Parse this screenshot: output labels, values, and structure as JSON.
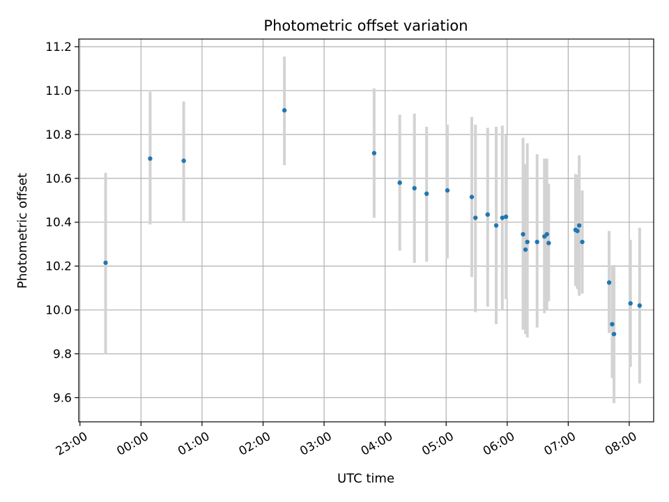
{
  "chart_data": {
    "type": "scatter",
    "title": "Photometric offset variation",
    "xlabel": "UTC time",
    "ylabel": "Photometric offset",
    "x_unit": "hours since 23:00",
    "xlim": [
      -0.02,
      9.4
    ],
    "ylim": [
      9.49,
      11.235
    ],
    "grid": true,
    "point_color": "#1f77b4",
    "errorbar_color": "#d3d3d3",
    "x_ticks": [
      {
        "value": 0,
        "label": "23:00"
      },
      {
        "value": 1,
        "label": "00:00"
      },
      {
        "value": 2,
        "label": "01:00"
      },
      {
        "value": 3,
        "label": "02:00"
      },
      {
        "value": 4,
        "label": "03:00"
      },
      {
        "value": 5,
        "label": "04:00"
      },
      {
        "value": 6,
        "label": "05:00"
      },
      {
        "value": 7,
        "label": "06:00"
      },
      {
        "value": 8,
        "label": "07:00"
      },
      {
        "value": 9,
        "label": "08:00"
      }
    ],
    "y_ticks": [
      {
        "value": 9.6,
        "label": "9.6"
      },
      {
        "value": 9.8,
        "label": "9.8"
      },
      {
        "value": 10.0,
        "label": "10.0"
      },
      {
        "value": 10.2,
        "label": "10.2"
      },
      {
        "value": 10.4,
        "label": "10.4"
      },
      {
        "value": 10.6,
        "label": "10.6"
      },
      {
        "value": 10.8,
        "label": "10.8"
      },
      {
        "value": 11.0,
        "label": "11.0"
      },
      {
        "value": 11.2,
        "label": "11.2"
      }
    ],
    "points": [
      {
        "x": 0.42,
        "y": 10.215,
        "ylo": 9.8,
        "yhi": 10.625
      },
      {
        "x": 1.15,
        "y": 10.69,
        "ylo": 10.39,
        "yhi": 10.995
      },
      {
        "x": 1.7,
        "y": 10.68,
        "ylo": 10.405,
        "yhi": 10.95
      },
      {
        "x": 3.35,
        "y": 10.91,
        "ylo": 10.66,
        "yhi": 11.155
      },
      {
        "x": 4.82,
        "y": 10.715,
        "ylo": 10.42,
        "yhi": 11.01
      },
      {
        "x": 5.24,
        "y": 10.58,
        "ylo": 10.27,
        "yhi": 10.89
      },
      {
        "x": 5.48,
        "y": 10.555,
        "ylo": 10.215,
        "yhi": 10.895
      },
      {
        "x": 5.68,
        "y": 10.53,
        "ylo": 10.22,
        "yhi": 10.835
      },
      {
        "x": 6.02,
        "y": 10.545,
        "ylo": 10.235,
        "yhi": 10.845
      },
      {
        "x": 6.42,
        "y": 10.515,
        "ylo": 10.15,
        "yhi": 10.88
      },
      {
        "x": 6.48,
        "y": 10.42,
        "ylo": 9.99,
        "yhi": 10.845
      },
      {
        "x": 6.68,
        "y": 10.435,
        "ylo": 10.015,
        "yhi": 10.83
      },
      {
        "x": 6.82,
        "y": 10.385,
        "ylo": 9.935,
        "yhi": 10.835
      },
      {
        "x": 6.92,
        "y": 10.42,
        "ylo": 10.0,
        "yhi": 10.84
      },
      {
        "x": 6.98,
        "y": 10.425,
        "ylo": 10.05,
        "yhi": 10.8
      },
      {
        "x": 7.26,
        "y": 10.345,
        "ylo": 9.91,
        "yhi": 10.785
      },
      {
        "x": 7.3,
        "y": 10.275,
        "ylo": 9.89,
        "yhi": 10.665
      },
      {
        "x": 7.33,
        "y": 10.31,
        "ylo": 9.875,
        "yhi": 10.76
      },
      {
        "x": 7.49,
        "y": 10.31,
        "ylo": 9.92,
        "yhi": 10.71
      },
      {
        "x": 7.61,
        "y": 10.335,
        "ylo": 9.985,
        "yhi": 10.69
      },
      {
        "x": 7.65,
        "y": 10.345,
        "ylo": 10.0,
        "yhi": 10.69
      },
      {
        "x": 7.68,
        "y": 10.305,
        "ylo": 10.04,
        "yhi": 10.575
      },
      {
        "x": 8.12,
        "y": 10.365,
        "ylo": 10.11,
        "yhi": 10.62
      },
      {
        "x": 8.15,
        "y": 10.36,
        "ylo": 10.095,
        "yhi": 10.615
      },
      {
        "x": 8.18,
        "y": 10.385,
        "ylo": 10.065,
        "yhi": 10.705
      },
      {
        "x": 8.23,
        "y": 10.31,
        "ylo": 10.075,
        "yhi": 10.545
      },
      {
        "x": 8.67,
        "y": 10.125,
        "ylo": 9.895,
        "yhi": 10.36
      },
      {
        "x": 8.72,
        "y": 9.935,
        "ylo": 9.69,
        "yhi": 10.2
      },
      {
        "x": 8.75,
        "y": 9.89,
        "ylo": 9.575,
        "yhi": 10.205
      },
      {
        "x": 9.02,
        "y": 10.03,
        "ylo": 9.74,
        "yhi": 10.32
      },
      {
        "x": 9.17,
        "y": 10.02,
        "ylo": 9.665,
        "yhi": 10.375
      }
    ]
  }
}
